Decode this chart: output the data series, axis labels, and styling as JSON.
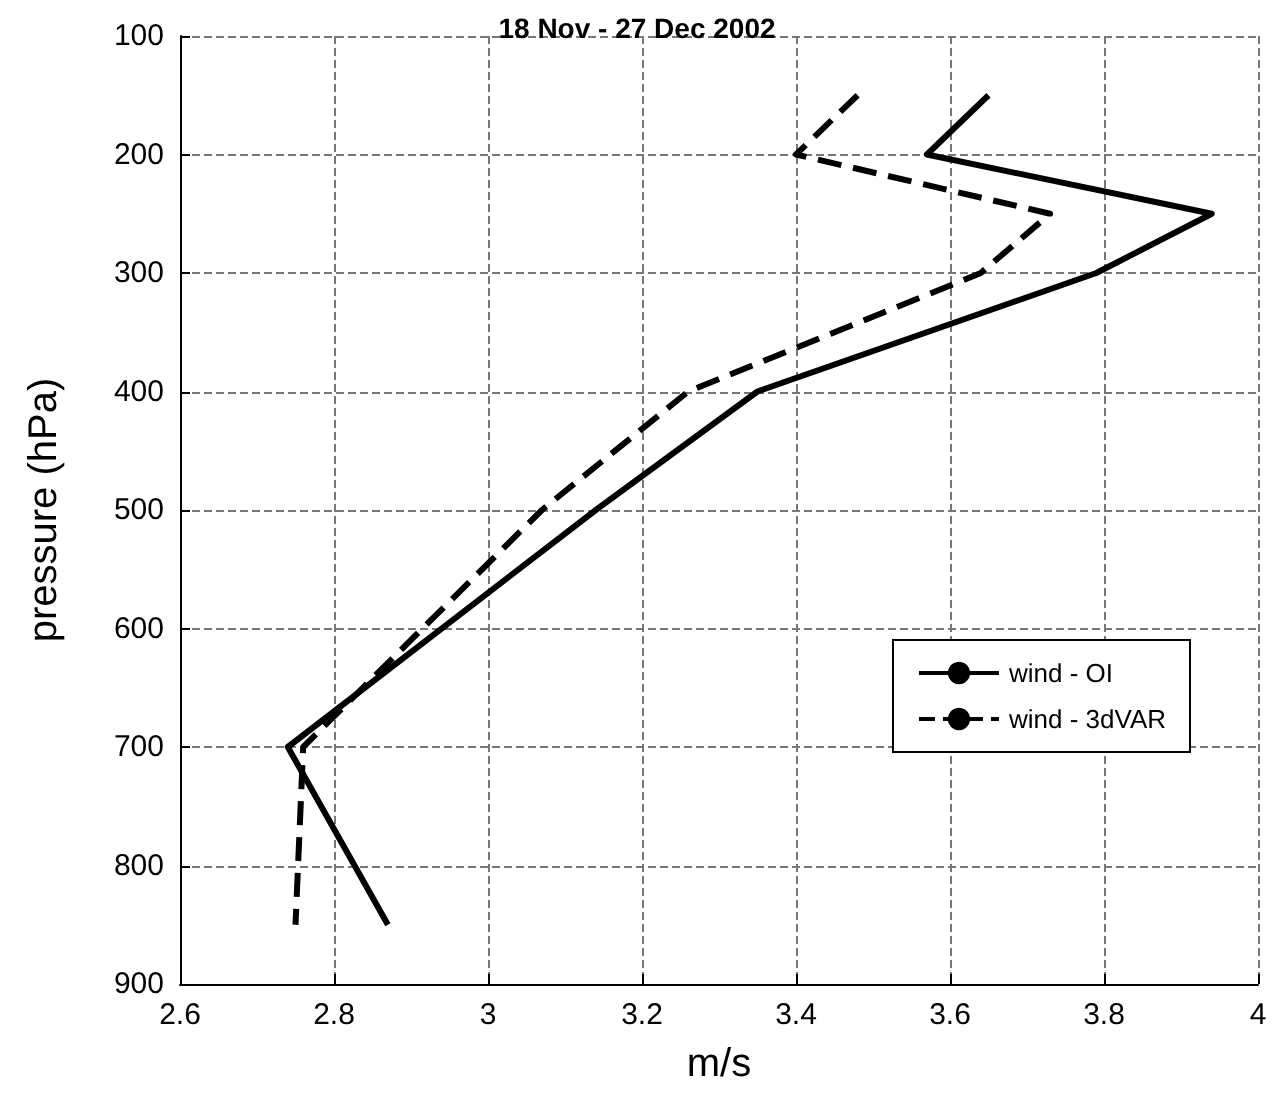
{
  "chart_data": {
    "type": "line",
    "title": "18 Nov - 27 Dec 2002",
    "xlabel": "m/s",
    "ylabel": "pressure (hPa)",
    "series": [
      {
        "name": "wind - OI",
        "color": "#000000",
        "line_style": "solid",
        "x": [
          3.65,
          3.57,
          3.94,
          3.79,
          3.35,
          3.14,
          2.74,
          2.87
        ],
        "values": [
          150,
          200,
          250,
          300,
          400,
          500,
          700,
          850
        ]
      },
      {
        "name": "wind - 3dVAR",
        "color": "#000000",
        "line_style": "dashed",
        "x": [
          3.48,
          3.4,
          3.73,
          3.64,
          3.26,
          3.07,
          2.76,
          2.75
        ],
        "values": [
          150,
          200,
          250,
          300,
          400,
          500,
          700,
          850
        ]
      }
    ],
    "xlim": [
      2.6,
      4
    ],
    "xticks": [
      2.6,
      2.8,
      3,
      3.2,
      3.4,
      3.6,
      3.8,
      4
    ],
    "ylim": [
      900,
      100
    ],
    "yticks": [
      100,
      200,
      300,
      400,
      500,
      600,
      700,
      800,
      900
    ],
    "grid": true,
    "legend": "right",
    "marker": "none"
  }
}
